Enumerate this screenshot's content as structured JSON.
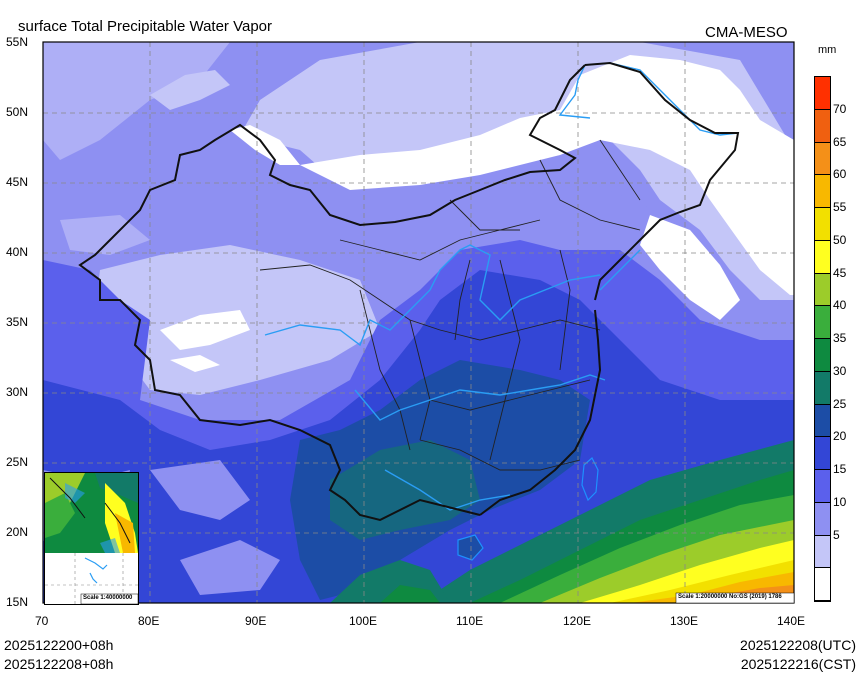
{
  "header": {
    "title": "surface Total Precipitable Water Vapor",
    "model": "CMA-MESO",
    "units": "mm"
  },
  "axes": {
    "lat_labels": [
      "55N",
      "50N",
      "45N",
      "40N",
      "35N",
      "30N",
      "25N",
      "20N",
      "15N"
    ],
    "lon_labels": [
      "70",
      "80E",
      "90E",
      "100E",
      "110E",
      "120E",
      "130E",
      "140E"
    ]
  },
  "colorbar": {
    "labels": [
      "70",
      "65",
      "60",
      "55",
      "50",
      "45",
      "40",
      "35",
      "30",
      "25",
      "20",
      "15",
      "10",
      "5"
    ],
    "colors": [
      "#ff3000",
      "#f06010",
      "#f49018",
      "#f8b800",
      "#f2e000",
      "#ffff20",
      "#9ccc2a",
      "#3aae3c",
      "#0e8a40",
      "#127a68",
      "#1c4da6",
      "#3346d6",
      "#5b60ec",
      "#8e90f2",
      "#c4c6f8",
      "#ffffff"
    ]
  },
  "inset": {
    "scale": "Scale 1:40000000"
  },
  "map": {
    "scale_note": "Scale 1:20000000 No:GS (2019) 1786"
  },
  "footer": {
    "init_left": "2025122200+08h",
    "valid_left": "2025122208+08h",
    "utc": "2025122208(UTC)",
    "cst": "2025122216(CST)"
  }
}
